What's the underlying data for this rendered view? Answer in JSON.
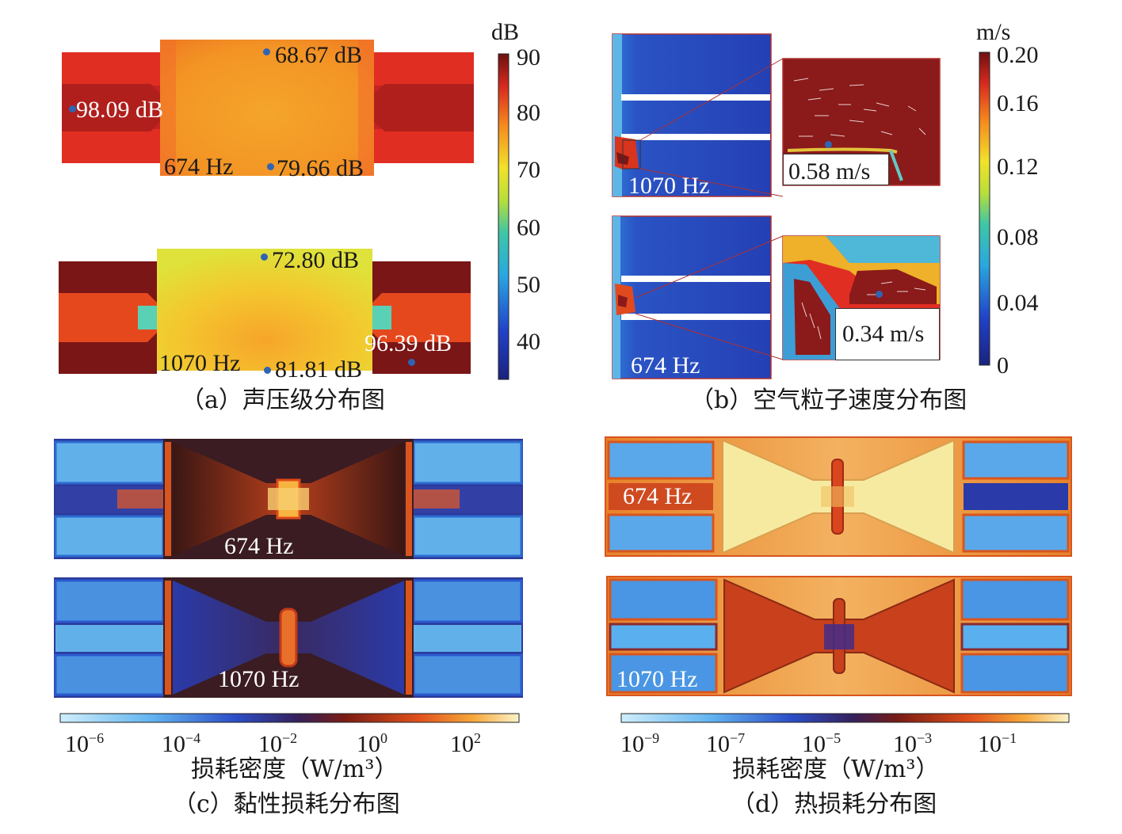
{
  "panel_a": {
    "caption": "（a）声压级分布图",
    "colorbar_unit": "dB",
    "colorbar_ticks": [
      "90",
      "80",
      "70",
      "60",
      "50",
      "40"
    ],
    "top": {
      "freq": "674 Hz",
      "probes": [
        "68.67 dB",
        "98.09 dB",
        "79.66 dB"
      ]
    },
    "bottom": {
      "freq": "1070 Hz",
      "probes": [
        "72.80 dB",
        "96.39 dB",
        "81.81 dB"
      ]
    }
  },
  "panel_b": {
    "caption": "（b）空气粒子速度分布图",
    "colorbar_unit": "m/s",
    "colorbar_ticks": [
      "0.20",
      "0.16",
      "0.12",
      "0.08",
      "0.04",
      "0"
    ],
    "top": {
      "freq": "1070 Hz",
      "probe": "0.58 m/s"
    },
    "bottom": {
      "freq": "674 Hz",
      "probe": "0.34 m/s"
    }
  },
  "panel_c": {
    "caption": "（c）黏性损耗分布图",
    "colorbar_label": "损耗密度（W/m³）",
    "colorbar_ticks": [
      {
        "base": "10",
        "exp": "−6"
      },
      {
        "base": "10",
        "exp": "−4"
      },
      {
        "base": "10",
        "exp": "−2"
      },
      {
        "base": "10",
        "exp": "0"
      },
      {
        "base": "10",
        "exp": "2"
      }
    ],
    "top_freq": "674 Hz",
    "bottom_freq": "1070 Hz"
  },
  "panel_d": {
    "caption": "（d）热损耗分布图",
    "colorbar_label": "损耗密度（W/m³）",
    "colorbar_ticks": [
      {
        "base": "10",
        "exp": "−9"
      },
      {
        "base": "10",
        "exp": "−7"
      },
      {
        "base": "10",
        "exp": "−5"
      },
      {
        "base": "10",
        "exp": "−3"
      },
      {
        "base": "10",
        "exp": "−1"
      }
    ],
    "top_freq": "674 Hz",
    "bottom_freq": "1070 Hz"
  },
  "colors": {
    "jet_dark_red": "#8b1a1a",
    "jet_red": "#e03020",
    "jet_orange": "#f08020",
    "jet_yellow": "#e8e020",
    "jet_blue": "#3050c0",
    "probe_dot": "#2f64b3"
  }
}
